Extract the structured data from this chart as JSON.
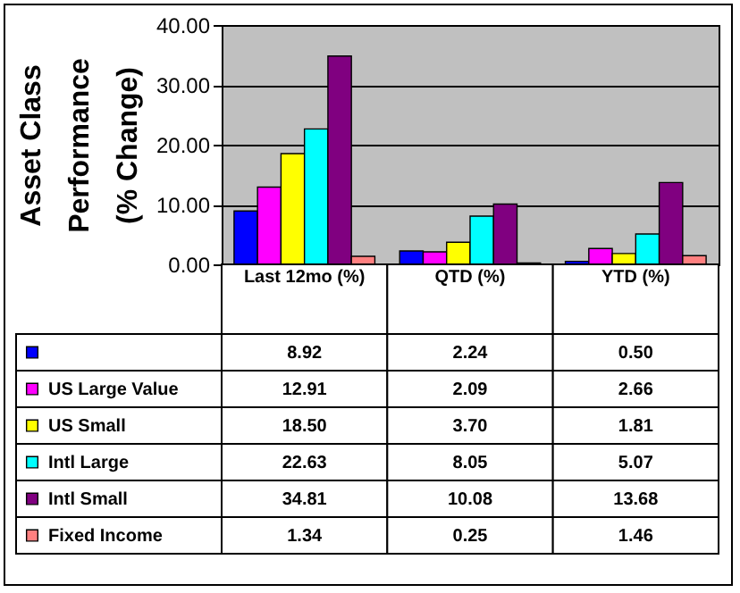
{
  "chart_data": {
    "type": "bar",
    "ylabel": "Asset Class Performance (% Change)",
    "categories": [
      "Last 12mo (%)",
      "QTD (%)",
      "YTD (%)"
    ],
    "series": [
      {
        "color": "#0000ff",
        "values": [
          8.92,
          2.24,
          0.5
        ],
        "value_labels": [
          "8.92",
          "2.24",
          "0.50"
        ]
      },
      {
        "name": "US Large Value",
        "color": "#ff00ff",
        "values": [
          12.91,
          2.09,
          2.66
        ],
        "value_labels": [
          "12.91",
          "2.09",
          "2.66"
        ]
      },
      {
        "name": "US Small",
        "color": "#ffff00",
        "values": [
          18.5,
          3.7,
          1.81
        ],
        "value_labels": [
          "18.50",
          "3.70",
          "1.81"
        ]
      },
      {
        "name": "Intl Large",
        "color": "#00ffff",
        "values": [
          22.63,
          8.05,
          5.07
        ],
        "value_labels": [
          "22.63",
          "8.05",
          "5.07"
        ]
      },
      {
        "name": "Intl Small",
        "color": "#800080",
        "values": [
          34.81,
          10.08,
          13.68
        ],
        "value_labels": [
          "34.81",
          "10.08",
          "13.68"
        ]
      },
      {
        "name": "Fixed Income",
        "color": "#ff8080",
        "values": [
          1.34,
          0.25,
          1.46
        ],
        "value_labels": [
          "1.34",
          "0.25",
          "1.46"
        ]
      }
    ],
    "ylim": [
      0,
      40
    ],
    "yticks": [
      {
        "value": 0,
        "label": "0.00"
      },
      {
        "value": 10,
        "label": "10.00"
      },
      {
        "value": 20,
        "label": "20.00"
      },
      {
        "value": 30,
        "label": "30.00"
      },
      {
        "value": 40,
        "label": "40.00"
      }
    ],
    "grid": "y",
    "legend": "bottom"
  }
}
